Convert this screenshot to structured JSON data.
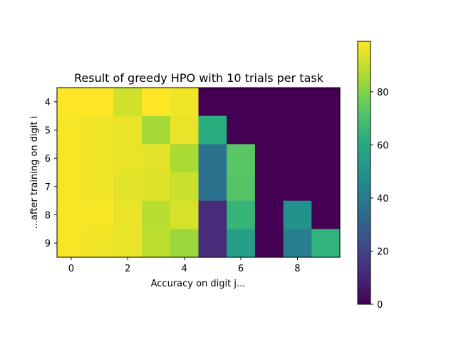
{
  "chart_data": {
    "type": "heatmap",
    "title": "Result of greedy HPO with 10 trials per task",
    "xlabel": "Accuracy on digit j...",
    "ylabel": "...after training on digit i",
    "x_ticks": [
      "0",
      "2",
      "4",
      "6",
      "8"
    ],
    "x_tick_values": [
      0,
      2,
      4,
      6,
      8
    ],
    "y_ticks": [
      "4",
      "5",
      "6",
      "7",
      "8",
      "9"
    ],
    "y_tick_values": [
      4,
      5,
      6,
      7,
      8,
      9
    ],
    "columns": [
      0,
      1,
      2,
      3,
      4,
      5,
      6,
      7,
      8,
      9
    ],
    "rows": [
      4,
      5,
      6,
      7,
      8,
      9
    ],
    "values": [
      [
        99,
        99,
        92,
        99,
        97,
        0,
        0,
        0,
        0,
        0
      ],
      [
        98,
        97,
        96,
        85,
        96,
        62,
        0,
        0,
        0,
        0
      ],
      [
        98,
        97,
        96,
        95,
        86,
        37,
        73,
        0,
        0,
        0
      ],
      [
        98,
        97,
        95,
        94,
        91,
        37,
        72,
        0,
        0,
        0
      ],
      [
        98,
        98,
        96,
        88,
        93,
        12,
        65,
        0,
        50,
        0
      ],
      [
        98,
        97,
        96,
        89,
        84,
        12,
        55,
        0,
        42,
        64
      ]
    ],
    "colorbar": {
      "min": 0,
      "max": 99,
      "ticks": [
        0,
        20,
        40,
        60,
        80
      ],
      "tick_labels": [
        "0",
        "20",
        "40",
        "60",
        "80"
      ]
    },
    "colormap": "viridis",
    "grid": false
  }
}
